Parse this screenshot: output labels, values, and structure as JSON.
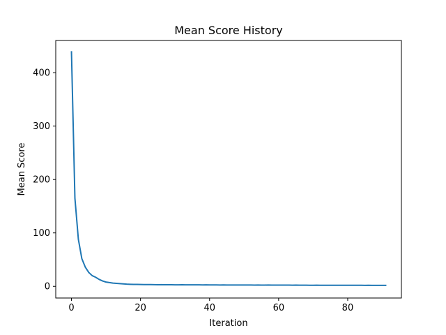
{
  "chart_data": {
    "type": "line",
    "title": "Mean Score History",
    "xlabel": "Iteration",
    "ylabel": "Mean Score",
    "xlim": [
      -4.55,
      95.55
    ],
    "ylim": [
      -21.9,
      460.3
    ],
    "xticks": [
      0,
      20,
      40,
      60,
      80
    ],
    "yticks": [
      0,
      100,
      200,
      300,
      400
    ],
    "grid": false,
    "line_color": "#1f77b4",
    "series": [
      {
        "x": [
          0,
          1,
          2,
          3,
          4,
          5,
          6,
          7,
          8,
          9,
          10,
          11,
          12,
          13,
          14,
          15,
          16,
          17,
          18,
          19,
          20,
          21,
          22,
          23,
          24,
          25,
          26,
          27,
          28,
          29,
          30,
          31,
          32,
          33,
          34,
          35,
          36,
          37,
          38,
          39,
          40,
          41,
          42,
          43,
          44,
          45,
          46,
          47,
          48,
          49,
          50,
          51,
          52,
          53,
          54,
          55,
          56,
          57,
          58,
          59,
          60,
          61,
          62,
          63,
          64,
          65,
          66,
          67,
          68,
          69,
          70,
          71,
          72,
          73,
          74,
          75,
          76,
          77,
          78,
          79,
          80,
          81,
          82,
          83,
          84,
          85,
          86,
          87,
          88,
          89,
          90,
          91
        ],
        "values": [
          439,
          165,
          88,
          52,
          36,
          26,
          20,
          17,
          13,
          10,
          8,
          7,
          6,
          5.5,
          5,
          4.5,
          4,
          3.8,
          3.6,
          3.5,
          3.4,
          3.3,
          3.2,
          3.3,
          3.1,
          3,
          3.1,
          3,
          2.9,
          2.9,
          2.8,
          2.8,
          2.9,
          2.8,
          2.7,
          2.8,
          2.7,
          2.7,
          2.6,
          2.7,
          2.6,
          2.6,
          2.6,
          2.5,
          2.6,
          2.5,
          2.5,
          2.5,
          2.4,
          2.5,
          2.4,
          2.4,
          2.4,
          2.3,
          2.4,
          2.3,
          2.3,
          2.5,
          2.3,
          2.2,
          2.2,
          2.3,
          2.2,
          2.2,
          2.1,
          2.2,
          2.1,
          2.1,
          2.1,
          2,
          2,
          2.1,
          2,
          2,
          2,
          2,
          1.9,
          2,
          1.9,
          1.9,
          1.9,
          1.9,
          2,
          1.9,
          1.9,
          1.8,
          1.9,
          1.8,
          1.8,
          1.8,
          1.8,
          1.8
        ]
      }
    ]
  }
}
